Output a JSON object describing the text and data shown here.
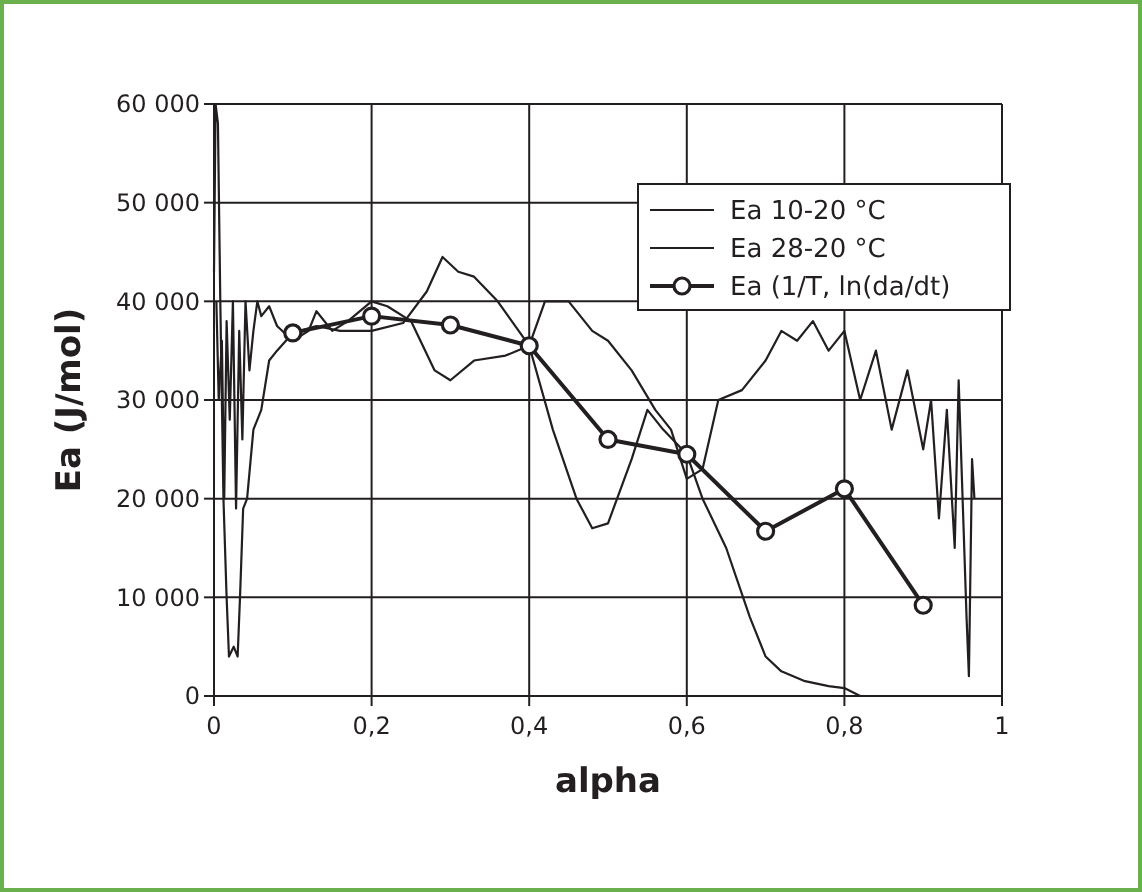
{
  "chart_data": {
    "type": "line",
    "xlabel": "alpha",
    "ylabel": "Ea (J/mol)",
    "xlim": [
      0,
      1
    ],
    "xticks": [
      0,
      {
        "value": 0.2,
        "label": "0,2"
      },
      {
        "value": 0.4,
        "label": "0,4"
      },
      {
        "value": 0.6,
        "label": "0,6"
      },
      {
        "value": 0.8,
        "label": "0,8"
      },
      1
    ],
    "ylim": [
      0,
      60000
    ],
    "yticks": [
      0,
      {
        "value": 10000,
        "label": "10 000"
      },
      {
        "value": 20000,
        "label": "20 000"
      },
      {
        "value": 30000,
        "label": "30 000"
      },
      {
        "value": 40000,
        "label": "40 000"
      },
      {
        "value": 50000,
        "label": "50 000"
      },
      {
        "value": 60000,
        "label": "60 000"
      }
    ],
    "grid": true,
    "legend": "top right",
    "series": [
      {
        "name": "Ea 10-20 °C",
        "color": "#231f20",
        "marker": "none",
        "x": [
          0,
          0.002,
          0.005,
          0.008,
          0.012,
          0.016,
          0.019,
          0.025,
          0.03,
          0.033,
          0.037,
          0.042,
          0.05,
          0.06,
          0.07,
          0.08,
          0.1,
          0.13,
          0.16,
          0.2,
          0.24,
          0.27,
          0.29,
          0.31,
          0.33,
          0.36,
          0.4,
          0.43,
          0.46,
          0.48,
          0.5,
          0.53,
          0.55,
          0.57,
          0.6,
          0.62,
          0.65,
          0.68,
          0.7,
          0.72,
          0.75,
          0.78,
          0.8,
          0.82,
          0.9,
          1.0
        ],
        "values": [
          43000,
          60000,
          58000,
          40000,
          20000,
          10000,
          4000,
          5000,
          4000,
          10000,
          19000,
          20000,
          27000,
          29000,
          34000,
          35000,
          36800,
          37500,
          37000,
          37000,
          37800,
          41000,
          44500,
          43000,
          42500,
          40000,
          35500,
          27000,
          20000,
          17000,
          17500,
          24000,
          29000,
          27000,
          24500,
          20000,
          15000,
          8000,
          4000,
          2500,
          1500,
          1000,
          800,
          0,
          0,
          0
        ]
      },
      {
        "name": "Ea 28-20 °C",
        "color": "#231f20",
        "marker": "none",
        "x": [
          0.003,
          0.006,
          0.01,
          0.013,
          0.016,
          0.02,
          0.024,
          0.028,
          0.032,
          0.036,
          0.04,
          0.045,
          0.05,
          0.055,
          0.06,
          0.07,
          0.08,
          0.1,
          0.12,
          0.13,
          0.15,
          0.17,
          0.2,
          0.22,
          0.25,
          0.28,
          0.3,
          0.33,
          0.37,
          0.4,
          0.42,
          0.45,
          0.48,
          0.5,
          0.53,
          0.56,
          0.58,
          0.6,
          0.62,
          0.64,
          0.67,
          0.7,
          0.72,
          0.74,
          0.76,
          0.78,
          0.8,
          0.82,
          0.84,
          0.86,
          0.88,
          0.9,
          0.91,
          0.92,
          0.93,
          0.94,
          0.945,
          0.95,
          0.955,
          0.958,
          0.962,
          0.965
        ],
        "values": [
          40000,
          30000,
          36000,
          20000,
          38000,
          28000,
          40000,
          19000,
          37000,
          26000,
          40000,
          33000,
          37000,
          40000,
          38500,
          39500,
          37500,
          36000,
          37000,
          39000,
          37000,
          38000,
          40000,
          39500,
          38000,
          33000,
          32000,
          34000,
          34500,
          35500,
          40000,
          40000,
          37000,
          36000,
          33000,
          29000,
          27000,
          22000,
          23000,
          30000,
          31000,
          34000,
          37000,
          36000,
          38000,
          35000,
          37000,
          30000,
          35000,
          27000,
          33000,
          25000,
          30000,
          18000,
          29000,
          15000,
          32000,
          20000,
          8000,
          2000,
          24000,
          20000
        ]
      },
      {
        "name": "Ea (1/T, ln(da/dt)",
        "color": "#231f20",
        "marker": "circle",
        "x": [
          0.1,
          0.2,
          0.3,
          0.4,
          0.5,
          0.6,
          0.7,
          0.8,
          0.9
        ],
        "values": [
          36800,
          38500,
          37600,
          35500,
          26000,
          24500,
          16700,
          21000,
          9200
        ]
      }
    ]
  }
}
